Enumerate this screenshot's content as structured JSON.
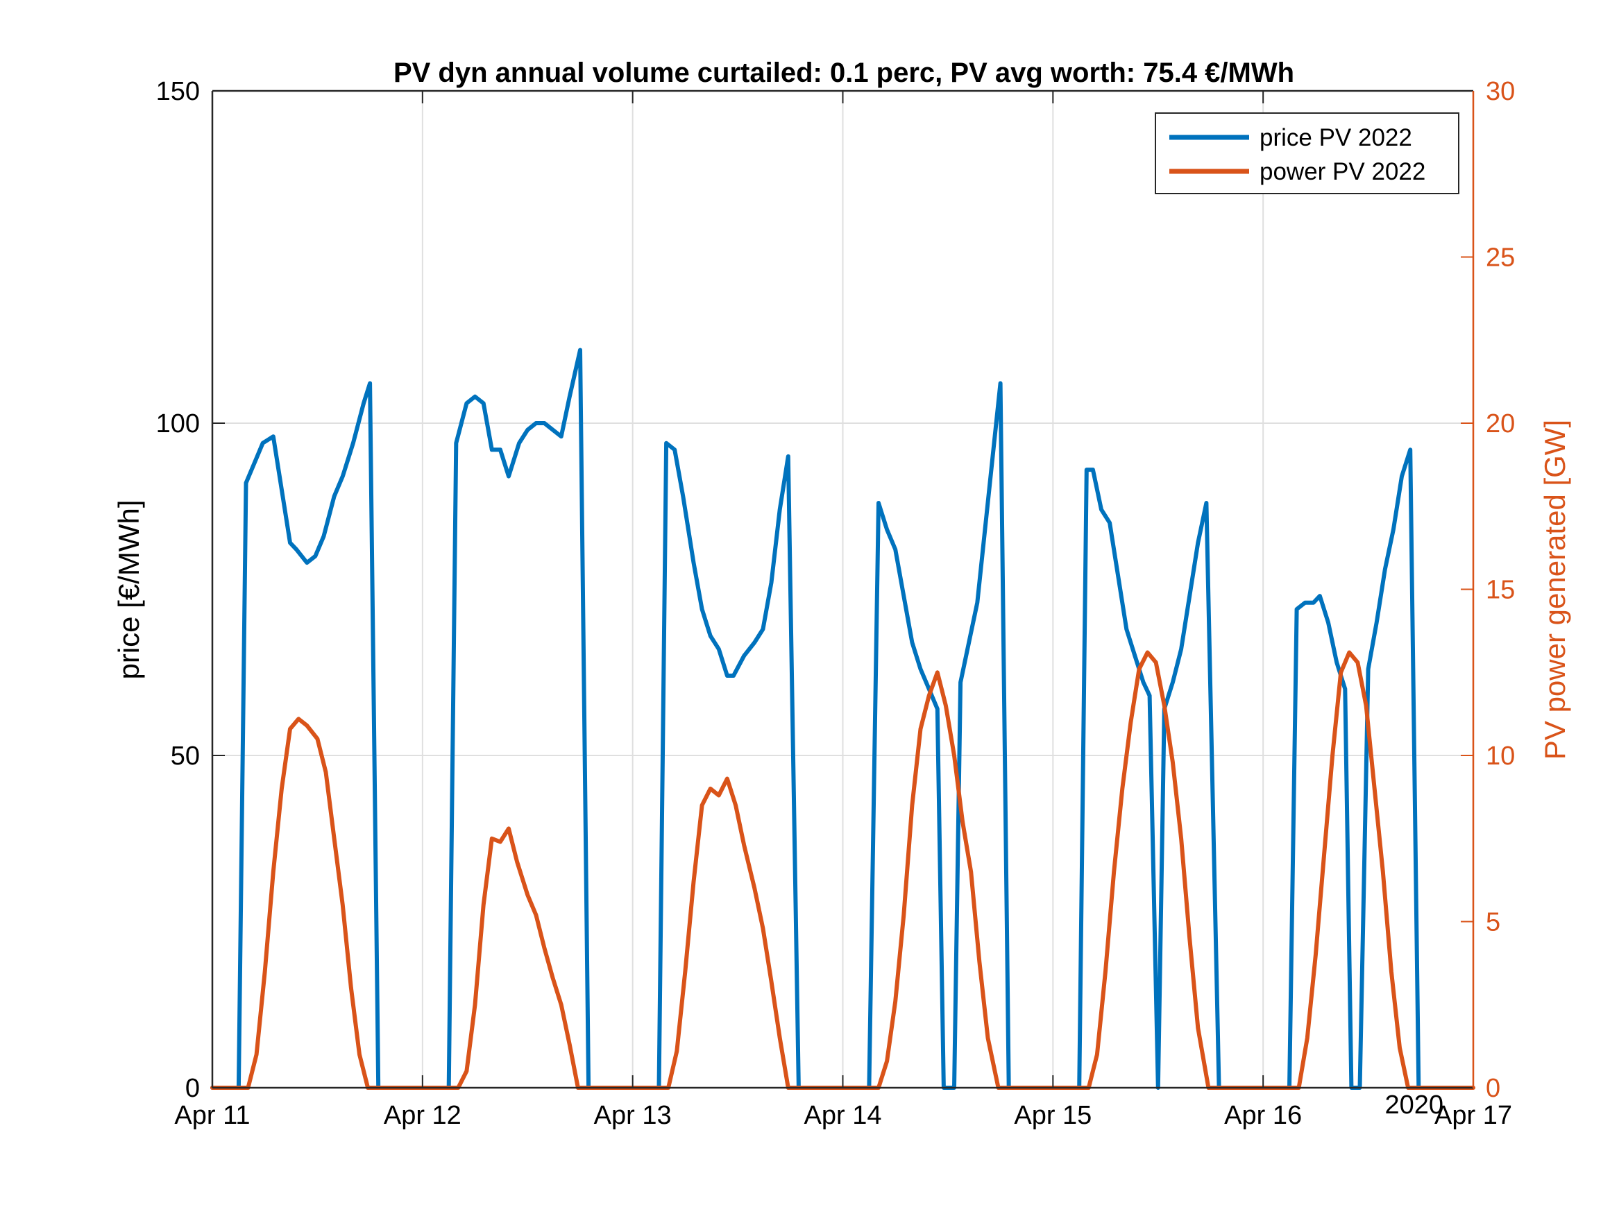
{
  "chart_data": {
    "type": "line",
    "title": "PV dyn annual volume curtailed: 0.1 perc, PV avg worth: 75.4 €/MWh",
    "xlabel": "",
    "year_label": "2020",
    "x_tick_labels": [
      "Apr 11",
      "Apr 12",
      "Apr 13",
      "Apr 14",
      "Apr 15",
      "Apr 16",
      "Apr 17"
    ],
    "xlim_days": [
      0,
      6
    ],
    "y_left": {
      "label": "price [€/MWh]",
      "lim": [
        0,
        150
      ],
      "ticks": [
        0,
        50,
        100,
        150
      ],
      "color": "#000000"
    },
    "y_right": {
      "label": "PV power generated [GW]",
      "lim": [
        0,
        30
      ],
      "ticks": [
        0,
        5,
        10,
        15,
        20,
        25,
        30
      ],
      "color": "#D95319"
    },
    "grid": true,
    "legend_position": "top-right",
    "series": [
      {
        "name": "price PV 2022",
        "axis": "left",
        "color": "#0072BD",
        "points": [
          [
            0.0,
            0
          ],
          [
            0.125,
            0
          ],
          [
            0.16,
            91
          ],
          [
            0.2,
            94
          ],
          [
            0.24,
            97
          ],
          [
            0.29,
            98
          ],
          [
            0.33,
            90
          ],
          [
            0.37,
            82
          ],
          [
            0.4,
            81
          ],
          [
            0.45,
            79
          ],
          [
            0.49,
            80
          ],
          [
            0.53,
            83
          ],
          [
            0.58,
            89
          ],
          [
            0.62,
            92
          ],
          [
            0.67,
            97
          ],
          [
            0.72,
            103
          ],
          [
            0.75,
            106
          ],
          [
            0.79,
            0
          ],
          [
            1.125,
            0
          ],
          [
            1.16,
            97
          ],
          [
            1.21,
            103
          ],
          [
            1.25,
            104
          ],
          [
            1.29,
            103
          ],
          [
            1.33,
            96
          ],
          [
            1.37,
            96
          ],
          [
            1.41,
            92
          ],
          [
            1.46,
            97
          ],
          [
            1.5,
            99
          ],
          [
            1.54,
            100
          ],
          [
            1.58,
            100
          ],
          [
            1.62,
            99
          ],
          [
            1.66,
            98
          ],
          [
            1.7,
            104
          ],
          [
            1.75,
            111
          ],
          [
            1.79,
            0
          ],
          [
            2.125,
            0
          ],
          [
            2.16,
            97
          ],
          [
            2.2,
            96
          ],
          [
            2.24,
            89
          ],
          [
            2.29,
            79
          ],
          [
            2.33,
            72
          ],
          [
            2.37,
            68
          ],
          [
            2.41,
            66
          ],
          [
            2.45,
            62
          ],
          [
            2.48,
            62
          ],
          [
            2.53,
            65
          ],
          [
            2.58,
            67
          ],
          [
            2.62,
            69
          ],
          [
            2.66,
            76
          ],
          [
            2.7,
            87
          ],
          [
            2.74,
            95
          ],
          [
            2.79,
            0
          ],
          [
            3.125,
            0
          ],
          [
            3.17,
            88
          ],
          [
            3.21,
            84
          ],
          [
            3.25,
            81
          ],
          [
            3.29,
            74
          ],
          [
            3.33,
            67
          ],
          [
            3.37,
            63
          ],
          [
            3.41,
            60
          ],
          [
            3.45,
            57
          ],
          [
            3.48,
            0
          ],
          [
            3.53,
            0
          ],
          [
            3.56,
            61
          ],
          [
            3.6,
            67
          ],
          [
            3.64,
            73
          ],
          [
            3.68,
            85
          ],
          [
            3.72,
            97
          ],
          [
            3.75,
            106
          ],
          [
            3.79,
            0
          ],
          [
            4.125,
            0
          ],
          [
            4.16,
            93
          ],
          [
            4.19,
            93
          ],
          [
            4.23,
            87
          ],
          [
            4.27,
            85
          ],
          [
            4.31,
            77
          ],
          [
            4.35,
            69
          ],
          [
            4.39,
            65
          ],
          [
            4.43,
            61
          ],
          [
            4.46,
            59
          ],
          [
            4.5,
            0
          ],
          [
            4.53,
            57
          ],
          [
            4.57,
            61
          ],
          [
            4.61,
            66
          ],
          [
            4.65,
            74
          ],
          [
            4.69,
            82
          ],
          [
            4.73,
            88
          ],
          [
            4.79,
            0
          ],
          [
            5.125,
            0
          ],
          [
            5.16,
            72
          ],
          [
            5.2,
            73
          ],
          [
            5.24,
            73
          ],
          [
            5.27,
            74
          ],
          [
            5.31,
            70
          ],
          [
            5.35,
            64
          ],
          [
            5.39,
            60
          ],
          [
            5.42,
            0
          ],
          [
            5.46,
            0
          ],
          [
            5.5,
            63
          ],
          [
            5.54,
            70
          ],
          [
            5.58,
            78
          ],
          [
            5.62,
            84
          ],
          [
            5.66,
            92
          ],
          [
            5.7,
            96
          ],
          [
            5.74,
            0
          ],
          [
            5.79,
            0
          ]
        ]
      },
      {
        "name": "power PV 2022",
        "axis": "right",
        "color": "#D95319",
        "points": [
          [
            0.0,
            0
          ],
          [
            0.17,
            0
          ],
          [
            0.21,
            1.0
          ],
          [
            0.25,
            3.5
          ],
          [
            0.29,
            6.5
          ],
          [
            0.33,
            9.0
          ],
          [
            0.37,
            10.8
          ],
          [
            0.41,
            11.1
          ],
          [
            0.45,
            10.9
          ],
          [
            0.5,
            10.5
          ],
          [
            0.54,
            9.5
          ],
          [
            0.58,
            7.5
          ],
          [
            0.62,
            5.5
          ],
          [
            0.66,
            3.0
          ],
          [
            0.7,
            1.0
          ],
          [
            0.74,
            0
          ],
          [
            1.17,
            0
          ],
          [
            1.21,
            0.5
          ],
          [
            1.25,
            2.5
          ],
          [
            1.29,
            5.5
          ],
          [
            1.33,
            7.5
          ],
          [
            1.37,
            7.4
          ],
          [
            1.41,
            7.8
          ],
          [
            1.45,
            6.8
          ],
          [
            1.5,
            5.8
          ],
          [
            1.54,
            5.2
          ],
          [
            1.58,
            4.2
          ],
          [
            1.62,
            3.3
          ],
          [
            1.66,
            2.5
          ],
          [
            1.7,
            1.3
          ],
          [
            1.74,
            0
          ],
          [
            2.17,
            0
          ],
          [
            2.21,
            1.1
          ],
          [
            2.25,
            3.5
          ],
          [
            2.29,
            6.2
          ],
          [
            2.33,
            8.5
          ],
          [
            2.37,
            9.0
          ],
          [
            2.41,
            8.8
          ],
          [
            2.45,
            9.3
          ],
          [
            2.49,
            8.5
          ],
          [
            2.53,
            7.3
          ],
          [
            2.58,
            6.0
          ],
          [
            2.62,
            4.8
          ],
          [
            2.66,
            3.2
          ],
          [
            2.7,
            1.5
          ],
          [
            2.74,
            0
          ],
          [
            3.17,
            0
          ],
          [
            3.21,
            0.8
          ],
          [
            3.25,
            2.6
          ],
          [
            3.29,
            5.2
          ],
          [
            3.33,
            8.5
          ],
          [
            3.37,
            10.8
          ],
          [
            3.41,
            11.8
          ],
          [
            3.45,
            12.5
          ],
          [
            3.49,
            11.5
          ],
          [
            3.53,
            10.0
          ],
          [
            3.57,
            8.0
          ],
          [
            3.61,
            6.5
          ],
          [
            3.65,
            3.8
          ],
          [
            3.69,
            1.5
          ],
          [
            3.74,
            0
          ],
          [
            4.17,
            0
          ],
          [
            4.21,
            1.0
          ],
          [
            4.25,
            3.5
          ],
          [
            4.29,
            6.5
          ],
          [
            4.33,
            9.0
          ],
          [
            4.37,
            11.0
          ],
          [
            4.41,
            12.6
          ],
          [
            4.45,
            13.1
          ],
          [
            4.49,
            12.8
          ],
          [
            4.53,
            11.5
          ],
          [
            4.57,
            9.8
          ],
          [
            4.61,
            7.5
          ],
          [
            4.65,
            4.5
          ],
          [
            4.69,
            1.8
          ],
          [
            4.74,
            0
          ],
          [
            5.17,
            0
          ],
          [
            5.21,
            1.5
          ],
          [
            5.25,
            4.0
          ],
          [
            5.29,
            7.0
          ],
          [
            5.33,
            10.0
          ],
          [
            5.37,
            12.5
          ],
          [
            5.41,
            13.1
          ],
          [
            5.45,
            12.8
          ],
          [
            5.49,
            11.5
          ],
          [
            5.53,
            9.0
          ],
          [
            5.57,
            6.5
          ],
          [
            5.61,
            3.5
          ],
          [
            5.65,
            1.2
          ],
          [
            5.69,
            0
          ],
          [
            6.0,
            0
          ]
        ]
      }
    ]
  }
}
